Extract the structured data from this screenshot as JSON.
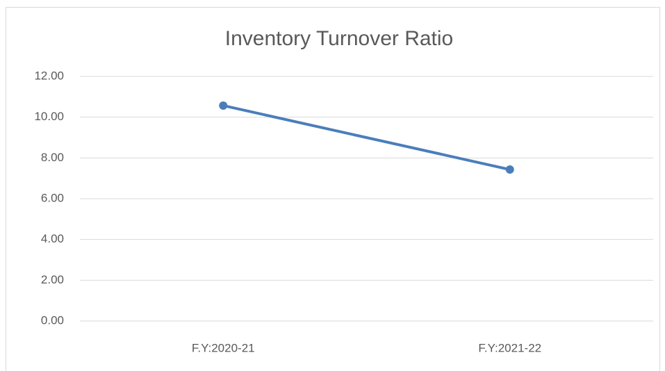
{
  "chart_data": {
    "type": "line",
    "title": "Inventory Turnover Ratio",
    "categories": [
      "F.Y:2020-21",
      "F.Y:2021-22"
    ],
    "series": [
      {
        "name": "Inventory Turnover Ratio",
        "color": "#4a7ebb",
        "values": [
          10.57,
          7.43
        ]
      }
    ],
    "ylim": [
      0,
      12
    ],
    "yticks": [
      {
        "value": 0,
        "label": "0.00"
      },
      {
        "value": 2,
        "label": "2.00"
      },
      {
        "value": 4,
        "label": "4.00"
      },
      {
        "value": 6,
        "label": "6.00"
      },
      {
        "value": 8,
        "label": "8.00"
      },
      {
        "value": 10,
        "label": "10.00"
      },
      {
        "value": 12,
        "label": "12.00"
      }
    ],
    "grid": true
  }
}
